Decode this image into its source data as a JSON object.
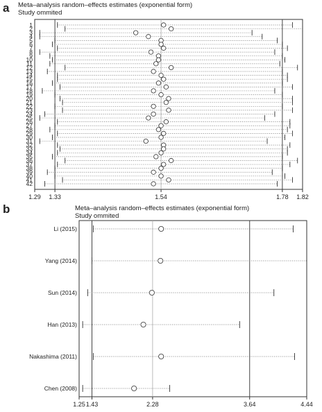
{
  "panels": [
    {
      "label": "a",
      "title_line1": "Meta–analysis random–effects estimates (exponential form)",
      "title_line2": "Study ommited"
    },
    {
      "label": "b",
      "title_line1": "Meta–analysis random–effects estimates (exponential form)",
      "title_line2": "Study ommited"
    }
  ],
  "chart_data": [
    {
      "type": "scatter",
      "subtype": "forest-plot-leave-one-out",
      "title": "Meta–analysis random–effects estimates (exponential form)",
      "subtitle": "Study ommited",
      "xlim": [
        1.29,
        1.82
      ],
      "x_ticks": [
        1.29,
        1.33,
        1.54,
        1.78,
        1.82
      ],
      "x_tick_labels": [
        "1.29",
        "1.33",
        "1.54",
        "1.78",
        "1.82"
      ],
      "reference_lines": [
        1.33,
        1.54,
        1.78
      ],
      "categories": [
        "1",
        "2",
        "3",
        "4",
        "5",
        "6",
        "7",
        "8",
        "9",
        "10",
        "11",
        "12",
        "13",
        "14",
        "15",
        "16",
        "17",
        "18",
        "19",
        "20",
        "21",
        "22",
        "23",
        "24",
        "25",
        "26",
        "27",
        "28",
        "29",
        "30",
        "31",
        "32",
        "33",
        "34",
        "35",
        "36",
        "37",
        "38",
        "39",
        "40",
        "41",
        "42"
      ],
      "estimate": [
        1.545,
        1.56,
        1.49,
        1.515,
        1.54,
        1.54,
        1.545,
        1.52,
        1.535,
        1.535,
        1.53,
        1.56,
        1.525,
        1.54,
        1.545,
        1.535,
        1.55,
        1.525,
        1.54,
        1.555,
        1.55,
        1.525,
        1.555,
        1.525,
        1.515,
        1.55,
        1.54,
        1.535,
        1.545,
        1.54,
        1.51,
        1.545,
        1.545,
        1.54,
        1.53,
        1.56,
        1.545,
        1.54,
        1.525,
        1.54,
        1.555,
        1.525
      ],
      "lower": [
        1.335,
        1.35,
        1.3,
        1.3,
        1.33,
        1.325,
        1.335,
        1.3,
        1.32,
        1.325,
        1.32,
        1.35,
        1.315,
        1.335,
        1.335,
        1.325,
        1.34,
        1.305,
        1.33,
        1.34,
        1.345,
        1.33,
        1.345,
        1.31,
        1.3,
        1.335,
        1.33,
        1.32,
        1.335,
        1.325,
        1.3,
        1.335,
        1.34,
        1.335,
        1.325,
        1.35,
        1.335,
        1.33,
        1.315,
        1.33,
        1.345,
        1.31
      ],
      "upper": [
        1.8,
        1.82,
        1.72,
        1.74,
        1.77,
        1.78,
        1.79,
        1.765,
        1.78,
        1.785,
        1.775,
        1.81,
        1.78,
        1.79,
        1.79,
        1.78,
        1.8,
        1.765,
        1.78,
        1.8,
        1.8,
        1.78,
        1.8,
        1.765,
        1.745,
        1.795,
        1.795,
        1.79,
        1.8,
        1.785,
        1.75,
        1.795,
        1.79,
        1.79,
        1.78,
        1.81,
        1.795,
        1.78,
        1.76,
        1.785,
        1.8,
        1.77
      ]
    },
    {
      "type": "scatter",
      "subtype": "forest-plot-leave-one-out",
      "title": "Meta–analysis random–effects estimates (exponential form)",
      "subtitle": "Study ommited",
      "xlim": [
        1.25,
        4.44
      ],
      "x_ticks": [
        1.25,
        1.43,
        2.28,
        3.64,
        4.44
      ],
      "x_tick_labels": [
        "1.25",
        "1.43",
        "2.28",
        "3.64",
        "4.44"
      ],
      "reference_lines": [
        1.43,
        2.28,
        3.64
      ],
      "categories": [
        "Li (2015)",
        "Yang (2014)",
        "Sun (2014)",
        "Han (2013)",
        "Nakashima (2011)",
        "Chen (2008)"
      ],
      "estimate": [
        2.4,
        2.39,
        2.27,
        2.15,
        2.4,
        2.02
      ],
      "lower": [
        1.45,
        1.43,
        1.37,
        1.3,
        1.45,
        1.3
      ],
      "upper": [
        4.25,
        4.44,
        3.98,
        3.5,
        4.27,
        2.52
      ]
    }
  ]
}
